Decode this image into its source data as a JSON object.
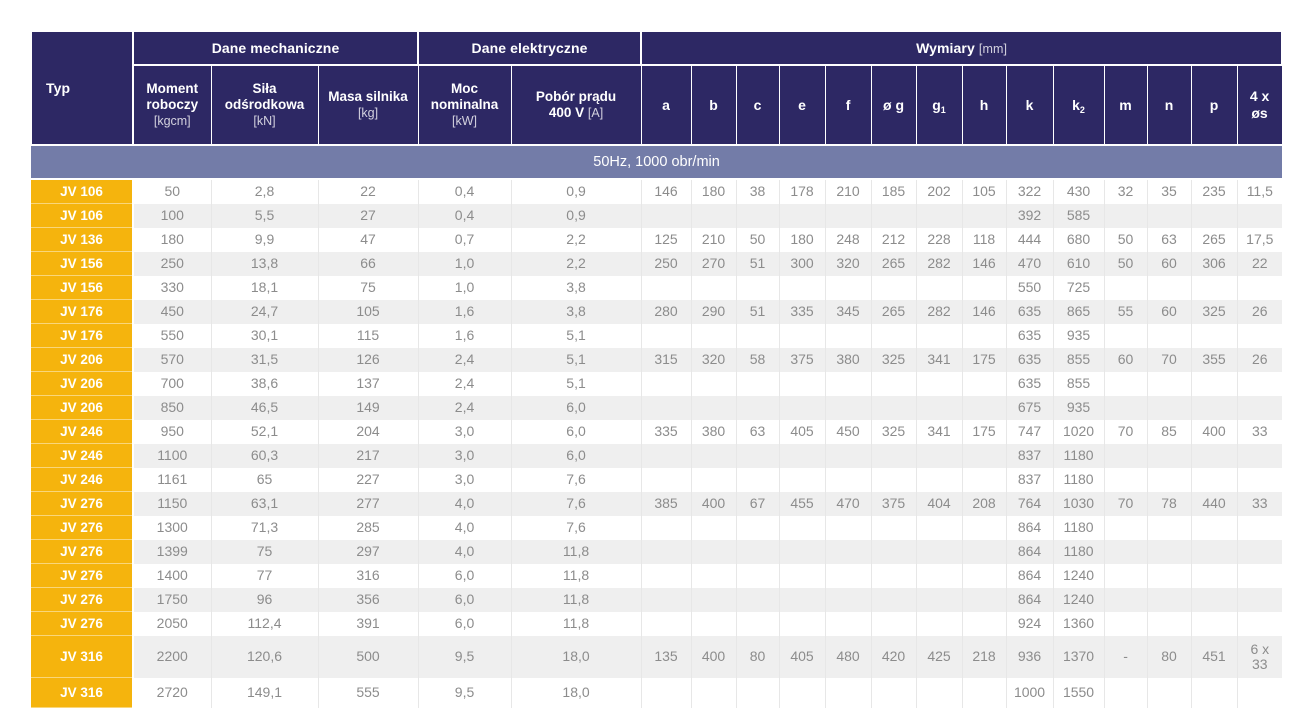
{
  "colors": {
    "header_bg": "#2D2864",
    "band_bg": "#737CA8",
    "type_column_bg": "#F5B40D",
    "row_alt_bg": "#EFEFEF",
    "data_text": "#8C8C8C",
    "header_text": "#FFFFFF"
  },
  "table": {
    "corner_label": "Typ",
    "groups": [
      {
        "label": "Dane mechaniczne"
      },
      {
        "label": "Dane elektryczne"
      },
      {
        "label": "Wymiary",
        "unit": "[mm]"
      }
    ],
    "main_columns": [
      {
        "label": "Moment roboczy",
        "unit": "[kgcm]"
      },
      {
        "label": "Siła odśrodkowa",
        "unit": "[kN]"
      },
      {
        "label": "Masa silnika",
        "unit": "[kg]"
      },
      {
        "label": "Moc nominalna",
        "unit": "[kW]"
      },
      {
        "label": "Pobór prądu",
        "label2": "400 V",
        "unit": "[A]"
      }
    ],
    "dim_columns": [
      {
        "t": "a"
      },
      {
        "t": "b"
      },
      {
        "t": "c"
      },
      {
        "t": "e"
      },
      {
        "t": "f"
      },
      {
        "t": "ø g"
      },
      {
        "t": "g",
        "sub": "1"
      },
      {
        "t": "h"
      },
      {
        "t": "k"
      },
      {
        "t": "k",
        "sub": "2"
      },
      {
        "t": "m"
      },
      {
        "t": "n"
      },
      {
        "t": "p"
      },
      {
        "t": "4 x",
        "t2": "øs"
      }
    ],
    "band_label": "50Hz, 1000 obr/min",
    "rows": [
      {
        "type": "JV 106",
        "values": [
          "50",
          "2,8",
          "22",
          "0,4",
          "0,9",
          "146",
          "180",
          "38",
          "178",
          "210",
          "185",
          "202",
          "105",
          "322",
          "430",
          "32",
          "35",
          "235",
          "11,5"
        ]
      },
      {
        "type": "JV 106",
        "values": [
          "100",
          "5,5",
          "27",
          "0,4",
          "0,9",
          "",
          "",
          "",
          "",
          "",
          "",
          "",
          "",
          "392",
          "585",
          "",
          "",
          "",
          ""
        ]
      },
      {
        "type": "JV 136",
        "values": [
          "180",
          "9,9",
          "47",
          "0,7",
          "2,2",
          "125",
          "210",
          "50",
          "180",
          "248",
          "212",
          "228",
          "118",
          "444",
          "680",
          "50",
          "63",
          "265",
          "17,5"
        ]
      },
      {
        "type": "JV 156",
        "values": [
          "250",
          "13,8",
          "66",
          "1,0",
          "2,2",
          "250",
          "270",
          "51",
          "300",
          "320",
          "265",
          "282",
          "146",
          "470",
          "610",
          "50",
          "60",
          "306",
          "22"
        ]
      },
      {
        "type": "JV 156",
        "values": [
          "330",
          "18,1",
          "75",
          "1,0",
          "3,8",
          "",
          "",
          "",
          "",
          "",
          "",
          "",
          "",
          "550",
          "725",
          "",
          "",
          "",
          ""
        ]
      },
      {
        "type": "JV 176",
        "values": [
          "450",
          "24,7",
          "105",
          "1,6",
          "3,8",
          "280",
          "290",
          "51",
          "335",
          "345",
          "265",
          "282",
          "146",
          "635",
          "865",
          "55",
          "60",
          "325",
          "26"
        ]
      },
      {
        "type": "JV 176",
        "values": [
          "550",
          "30,1",
          "115",
          "1,6",
          "5,1",
          "",
          "",
          "",
          "",
          "",
          "",
          "",
          "",
          "635",
          "935",
          "",
          "",
          "",
          ""
        ]
      },
      {
        "type": "JV 206",
        "values": [
          "570",
          "31,5",
          "126",
          "2,4",
          "5,1",
          "315",
          "320",
          "58",
          "375",
          "380",
          "325",
          "341",
          "175",
          "635",
          "855",
          "60",
          "70",
          "355",
          "26"
        ]
      },
      {
        "type": "JV 206",
        "values": [
          "700",
          "38,6",
          "137",
          "2,4",
          "5,1",
          "",
          "",
          "",
          "",
          "",
          "",
          "",
          "",
          "635",
          "855",
          "",
          "",
          "",
          ""
        ]
      },
      {
        "type": "JV 206",
        "values": [
          "850",
          "46,5",
          "149",
          "2,4",
          "6,0",
          "",
          "",
          "",
          "",
          "",
          "",
          "",
          "",
          "675",
          "935",
          "",
          "",
          "",
          ""
        ]
      },
      {
        "type": "JV 246",
        "values": [
          "950",
          "52,1",
          "204",
          "3,0",
          "6,0",
          "335",
          "380",
          "63",
          "405",
          "450",
          "325",
          "341",
          "175",
          "747",
          "1020",
          "70",
          "85",
          "400",
          "33"
        ]
      },
      {
        "type": "JV 246",
        "values": [
          "1100",
          "60,3",
          "217",
          "3,0",
          "6,0",
          "",
          "",
          "",
          "",
          "",
          "",
          "",
          "",
          "837",
          "1180",
          "",
          "",
          "",
          ""
        ]
      },
      {
        "type": "JV 246",
        "values": [
          "1161",
          "65",
          "227",
          "3,0",
          "7,6",
          "",
          "",
          "",
          "",
          "",
          "",
          "",
          "",
          "837",
          "1180",
          "",
          "",
          "",
          ""
        ]
      },
      {
        "type": "JV 276",
        "values": [
          "1150",
          "63,1",
          "277",
          "4,0",
          "7,6",
          "385",
          "400",
          "67",
          "455",
          "470",
          "375",
          "404",
          "208",
          "764",
          "1030",
          "70",
          "78",
          "440",
          "33"
        ]
      },
      {
        "type": "JV 276",
        "values": [
          "1300",
          "71,3",
          "285",
          "4,0",
          "7,6",
          "",
          "",
          "",
          "",
          "",
          "",
          "",
          "",
          "864",
          "1180",
          "",
          "",
          "",
          ""
        ]
      },
      {
        "type": "JV 276",
        "values": [
          "1399",
          "75",
          "297",
          "4,0",
          "11,8",
          "",
          "",
          "",
          "",
          "",
          "",
          "",
          "",
          "864",
          "1180",
          "",
          "",
          "",
          ""
        ]
      },
      {
        "type": "JV 276",
        "values": [
          "1400",
          "77",
          "316",
          "6,0",
          "11,8",
          "",
          "",
          "",
          "",
          "",
          "",
          "",
          "",
          "864",
          "1240",
          "",
          "",
          "",
          ""
        ]
      },
      {
        "type": "JV 276",
        "values": [
          "1750",
          "96",
          "356",
          "6,0",
          "11,8",
          "",
          "",
          "",
          "",
          "",
          "",
          "",
          "",
          "864",
          "1240",
          "",
          "",
          "",
          ""
        ]
      },
      {
        "type": "JV 276",
        "values": [
          "2050",
          "112,4",
          "391",
          "6,0",
          "11,8",
          "",
          "",
          "",
          "",
          "",
          "",
          "",
          "",
          "924",
          "1360",
          "",
          "",
          "",
          ""
        ]
      },
      {
        "type": "JV 316",
        "values": [
          "2200",
          "120,6",
          "500",
          "9,5",
          "18,0",
          "135",
          "400",
          "80",
          "405",
          "480",
          "420",
          "425",
          "218",
          "936",
          "1370",
          "-",
          "80",
          "451",
          "6 x\n33"
        ]
      },
      {
        "type": "JV 316",
        "values": [
          "2720",
          "149,1",
          "555",
          "9,5",
          "18,0",
          "",
          "",
          "",
          "",
          "",
          "",
          "",
          "",
          "1000",
          "1550",
          "",
          "",
          "",
          ""
        ]
      }
    ]
  }
}
